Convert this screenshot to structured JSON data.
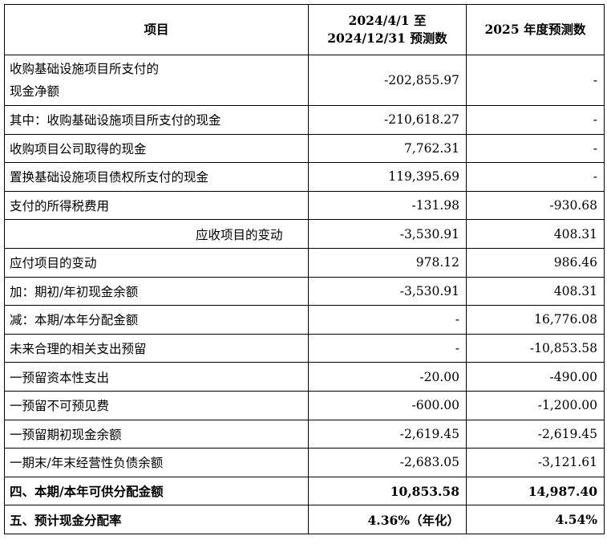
{
  "table": {
    "headers": {
      "item": "项目",
      "period_line1": "2024/4/1 至",
      "period_line2": "2024/12/31 预测数",
      "year": "2025 年度预测数"
    },
    "rows": [
      {
        "label_line1": "收购基础设施项目所支付的",
        "label_line2": "现金净额",
        "v1": "-202,855.97",
        "v2": "-"
      },
      {
        "label": "其中：收购基础设施项目所支付的现金",
        "v1": "-210,618.27",
        "v2": "-"
      },
      {
        "label": "收购项目公司取得的现金",
        "v1": "7,762.31",
        "v2": "-"
      },
      {
        "label": "置换基础设施项目债权所支付的现金",
        "v1": "119,395.69",
        "v2": "-"
      },
      {
        "label": "支付的所得税费用",
        "v1": "-131.98",
        "v2": "-930.68"
      },
      {
        "label": "应收项目的变动",
        "v1": "-3,530.91",
        "v2": "408.31"
      },
      {
        "label": "应付项目的变动",
        "v1": "978.12",
        "v2": "986.46"
      },
      {
        "label": "加：期初/年初现金余额",
        "v1": "-3,530.91",
        "v2": "408.31"
      },
      {
        "label": "减：本期/本年分配金额",
        "v1": "-",
        "v2": "16,776.08"
      },
      {
        "label": "未来合理的相关支出预留",
        "v1": "-",
        "v2": "-10,853.58"
      },
      {
        "label": "一预留资本性支出",
        "v1": "-20.00",
        "v2": "-490.00"
      },
      {
        "label": "一预留不可预见费",
        "v1": "-600.00",
        "v2": "-1,200.00"
      },
      {
        "label": "一预留期初现金余额",
        "v1": "-2,619.45",
        "v2": "-2,619.45"
      },
      {
        "label": "一期末/年末经营性负债余额",
        "v1": "-2,683.05",
        "v2": "-3,121.61"
      },
      {
        "label": "四、本期/本年可供分配金额",
        "v1": "10,853.58",
        "v2": "14,987.40"
      },
      {
        "label": "五、预计现金分配率",
        "v1": "4.36%（年化）",
        "v2": "4.54%"
      }
    ]
  }
}
